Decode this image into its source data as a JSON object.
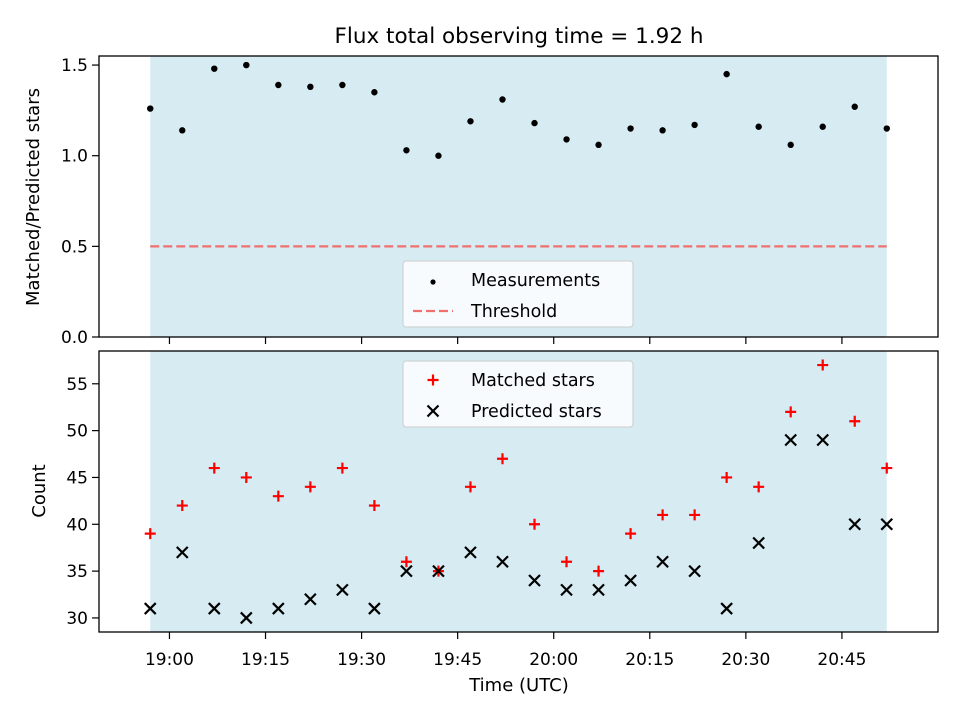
{
  "chart_data": {
    "type": "scatter",
    "title": "Flux total observing time = 1.92 h",
    "xlabel": "Time (UTC)",
    "x_ticks": [
      "19:00",
      "19:15",
      "19:30",
      "19:45",
      "20:00",
      "20:15",
      "20:30",
      "20:45"
    ],
    "times": [
      "18:57",
      "19:02",
      "19:07",
      "19:12",
      "19:17",
      "19:22",
      "19:27",
      "19:32",
      "19:37",
      "19:42",
      "19:47",
      "19:52",
      "19:57",
      "20:02",
      "20:07",
      "20:12",
      "20:17",
      "20:22",
      "20:27",
      "20:32",
      "20:37",
      "20:42",
      "20:47",
      "20:52"
    ],
    "shaded_interval": [
      "18:57",
      "20:52"
    ],
    "panels": [
      {
        "ylabel": "Matched/Predicted stars",
        "ylim": [
          0,
          1.55
        ],
        "y_ticks": [
          0.0,
          0.5,
          1.0,
          1.5
        ],
        "y_tick_labels": [
          "0.0",
          "0.5",
          "1.0",
          "1.5"
        ],
        "legend_position": "lower-center",
        "series": [
          {
            "name": "Measurements",
            "marker": "dot",
            "color": "#000000",
            "values": [
              1.26,
              1.14,
              1.48,
              1.5,
              1.39,
              1.38,
              1.39,
              1.35,
              1.03,
              1.0,
              1.19,
              1.31,
              1.18,
              1.09,
              1.06,
              1.15,
              1.14,
              1.17,
              1.45,
              1.16,
              1.06,
              1.16,
              1.27,
              1.15
            ]
          },
          {
            "name": "Threshold",
            "marker": "dashed-line",
            "color": "#f07070",
            "value": 0.5
          }
        ]
      },
      {
        "ylabel": "Count",
        "ylim": [
          28.5,
          58.5
        ],
        "y_ticks": [
          30,
          35,
          40,
          45,
          50,
          55
        ],
        "y_tick_labels": [
          "30",
          "35",
          "40",
          "45",
          "50",
          "55"
        ],
        "legend_position": "upper-center",
        "series": [
          {
            "name": "Matched stars",
            "marker": "plus",
            "color": "#ff0000",
            "values": [
              39,
              42,
              46,
              45,
              43,
              44,
              46,
              42,
              36,
              35,
              44,
              47,
              40,
              36,
              35,
              39,
              41,
              41,
              45,
              44,
              52,
              57,
              51,
              46
            ]
          },
          {
            "name": "Predicted stars",
            "marker": "x",
            "color": "#000000",
            "values": [
              31,
              37,
              31,
              30,
              31,
              32,
              33,
              31,
              35,
              35,
              37,
              36,
              34,
              33,
              33,
              34,
              36,
              35,
              31,
              38,
              49,
              49,
              40,
              40
            ]
          }
        ]
      }
    ],
    "colors": {
      "shade": "#add8e6",
      "shade_opacity": 0.5
    }
  }
}
